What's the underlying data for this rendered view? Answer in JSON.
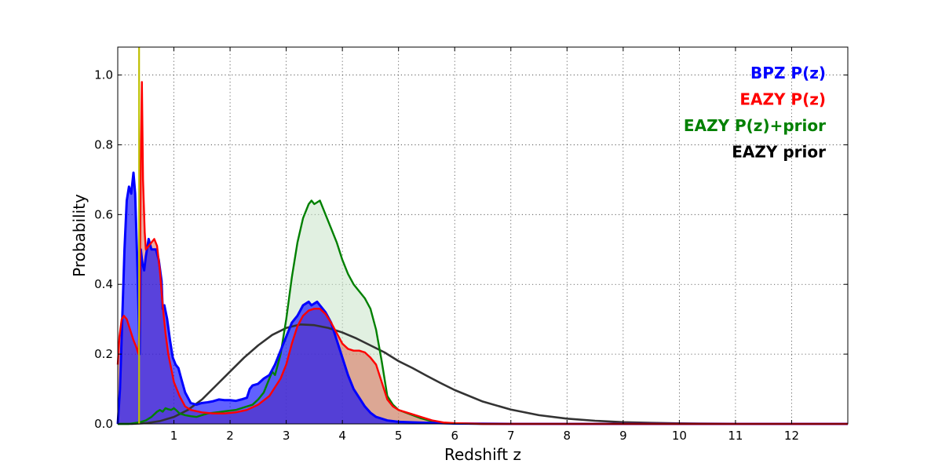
{
  "chart_data": {
    "type": "area",
    "title": "",
    "xlabel": "Redshift z",
    "ylabel": "Probability",
    "xlim": [
      0,
      13
    ],
    "ylim": [
      0,
      1.08
    ],
    "x_ticks": [
      "1",
      "2",
      "3",
      "4",
      "5",
      "6",
      "7",
      "8",
      "9",
      "10",
      "11",
      "12"
    ],
    "y_ticks": [
      "0.0",
      "0.2",
      "0.4",
      "0.6",
      "0.8",
      "1.0"
    ],
    "grid": true,
    "legend_position": "top-right",
    "vertical_line": {
      "x": 0.38,
      "color": "#bfbf00"
    },
    "series": [
      {
        "name": "BPZ P(z)",
        "color": "#0000ff",
        "fill": "#0000ff",
        "points": [
          [
            0,
            0
          ],
          [
            0.04,
            0.1
          ],
          [
            0.08,
            0.3
          ],
          [
            0.12,
            0.5
          ],
          [
            0.16,
            0.64
          ],
          [
            0.2,
            0.68
          ],
          [
            0.24,
            0.66
          ],
          [
            0.28,
            0.72
          ],
          [
            0.31,
            0.66
          ],
          [
            0.35,
            0.45
          ],
          [
            0.39,
            0.2
          ],
          [
            0.41,
            0.5
          ],
          [
            0.44,
            0.46
          ],
          [
            0.47,
            0.44
          ],
          [
            0.5,
            0.48
          ],
          [
            0.55,
            0.53
          ],
          [
            0.6,
            0.5
          ],
          [
            0.68,
            0.5
          ],
          [
            0.73,
            0.47
          ],
          [
            0.78,
            0.41
          ],
          [
            0.8,
            0.33
          ],
          [
            0.83,
            0.34
          ],
          [
            0.88,
            0.3
          ],
          [
            0.93,
            0.24
          ],
          [
            0.98,
            0.19
          ],
          [
            1.03,
            0.17
          ],
          [
            1.08,
            0.16
          ],
          [
            1.13,
            0.13
          ],
          [
            1.2,
            0.09
          ],
          [
            1.3,
            0.06
          ],
          [
            1.4,
            0.055
          ],
          [
            1.5,
            0.06
          ],
          [
            1.6,
            0.062
          ],
          [
            1.7,
            0.065
          ],
          [
            1.8,
            0.07
          ],
          [
            1.9,
            0.068
          ],
          [
            2.0,
            0.068
          ],
          [
            2.1,
            0.066
          ],
          [
            2.2,
            0.07
          ],
          [
            2.3,
            0.075
          ],
          [
            2.35,
            0.1
          ],
          [
            2.4,
            0.11
          ],
          [
            2.5,
            0.115
          ],
          [
            2.6,
            0.13
          ],
          [
            2.7,
            0.14
          ],
          [
            2.8,
            0.17
          ],
          [
            2.9,
            0.21
          ],
          [
            3.0,
            0.25
          ],
          [
            3.1,
            0.29
          ],
          [
            3.2,
            0.31
          ],
          [
            3.3,
            0.34
          ],
          [
            3.35,
            0.345
          ],
          [
            3.4,
            0.35
          ],
          [
            3.45,
            0.34
          ],
          [
            3.5,
            0.345
          ],
          [
            3.55,
            0.35
          ],
          [
            3.6,
            0.34
          ],
          [
            3.7,
            0.32
          ],
          [
            3.8,
            0.29
          ],
          [
            3.9,
            0.24
          ],
          [
            4.0,
            0.19
          ],
          [
            4.1,
            0.14
          ],
          [
            4.2,
            0.1
          ],
          [
            4.3,
            0.075
          ],
          [
            4.4,
            0.05
          ],
          [
            4.5,
            0.032
          ],
          [
            4.6,
            0.02
          ],
          [
            4.8,
            0.01
          ],
          [
            5.0,
            0.006
          ],
          [
            5.5,
            0.003
          ],
          [
            6.0,
            0.001
          ],
          [
            7.0,
            0
          ],
          [
            13.0,
            0
          ]
        ]
      },
      {
        "name": "EAZY P(z)",
        "color": "#ff0000",
        "fill": "#d96c55",
        "points": [
          [
            0,
            0.17
          ],
          [
            0.03,
            0.25
          ],
          [
            0.07,
            0.3
          ],
          [
            0.11,
            0.31
          ],
          [
            0.16,
            0.3
          ],
          [
            0.22,
            0.27
          ],
          [
            0.28,
            0.24
          ],
          [
            0.33,
            0.22
          ],
          [
            0.37,
            0.2
          ],
          [
            0.39,
            0.3
          ],
          [
            0.41,
            0.75
          ],
          [
            0.43,
            0.98
          ],
          [
            0.45,
            0.7
          ],
          [
            0.48,
            0.55
          ],
          [
            0.5,
            0.5
          ],
          [
            0.55,
            0.51
          ],
          [
            0.6,
            0.52
          ],
          [
            0.65,
            0.53
          ],
          [
            0.7,
            0.51
          ],
          [
            0.75,
            0.44
          ],
          [
            0.8,
            0.34
          ],
          [
            0.85,
            0.26
          ],
          [
            0.9,
            0.2
          ],
          [
            0.95,
            0.16
          ],
          [
            1.0,
            0.12
          ],
          [
            1.05,
            0.1
          ],
          [
            1.1,
            0.08
          ],
          [
            1.15,
            0.065
          ],
          [
            1.2,
            0.05
          ],
          [
            1.3,
            0.04
          ],
          [
            1.5,
            0.033
          ],
          [
            1.7,
            0.03
          ],
          [
            1.9,
            0.03
          ],
          [
            2.1,
            0.033
          ],
          [
            2.3,
            0.04
          ],
          [
            2.5,
            0.055
          ],
          [
            2.7,
            0.08
          ],
          [
            2.9,
            0.13
          ],
          [
            3.0,
            0.17
          ],
          [
            3.1,
            0.23
          ],
          [
            3.2,
            0.28
          ],
          [
            3.3,
            0.31
          ],
          [
            3.4,
            0.325
          ],
          [
            3.5,
            0.33
          ],
          [
            3.6,
            0.33
          ],
          [
            3.7,
            0.315
          ],
          [
            3.8,
            0.29
          ],
          [
            3.9,
            0.26
          ],
          [
            4.0,
            0.23
          ],
          [
            4.1,
            0.215
          ],
          [
            4.2,
            0.21
          ],
          [
            4.3,
            0.21
          ],
          [
            4.4,
            0.205
          ],
          [
            4.5,
            0.19
          ],
          [
            4.6,
            0.17
          ],
          [
            4.7,
            0.12
          ],
          [
            4.8,
            0.07
          ],
          [
            4.9,
            0.05
          ],
          [
            5.0,
            0.04
          ],
          [
            5.2,
            0.03
          ],
          [
            5.4,
            0.02
          ],
          [
            5.6,
            0.01
          ],
          [
            5.8,
            0.004
          ],
          [
            6.0,
            0.002
          ],
          [
            6.5,
            0
          ],
          [
            13.0,
            0
          ]
        ]
      },
      {
        "name": "EAZY P(z)+prior",
        "color": "#008000",
        "fill": "#c8e3c8",
        "points": [
          [
            0,
            0
          ],
          [
            0.2,
            0
          ],
          [
            0.4,
            0.005
          ],
          [
            0.5,
            0.01
          ],
          [
            0.6,
            0.02
          ],
          [
            0.7,
            0.035
          ],
          [
            0.75,
            0.04
          ],
          [
            0.8,
            0.035
          ],
          [
            0.85,
            0.045
          ],
          [
            0.9,
            0.042
          ],
          [
            0.95,
            0.04
          ],
          [
            1.0,
            0.045
          ],
          [
            1.05,
            0.038
          ],
          [
            1.1,
            0.03
          ],
          [
            1.2,
            0.025
          ],
          [
            1.3,
            0.022
          ],
          [
            1.4,
            0.02
          ],
          [
            1.5,
            0.025
          ],
          [
            1.6,
            0.03
          ],
          [
            1.7,
            0.032
          ],
          [
            1.8,
            0.034
          ],
          [
            1.9,
            0.036
          ],
          [
            2.0,
            0.038
          ],
          [
            2.1,
            0.04
          ],
          [
            2.2,
            0.045
          ],
          [
            2.3,
            0.05
          ],
          [
            2.4,
            0.055
          ],
          [
            2.5,
            0.07
          ],
          [
            2.6,
            0.09
          ],
          [
            2.7,
            0.13
          ],
          [
            2.75,
            0.15
          ],
          [
            2.8,
            0.14
          ],
          [
            2.9,
            0.2
          ],
          [
            3.0,
            0.3
          ],
          [
            3.1,
            0.42
          ],
          [
            3.2,
            0.52
          ],
          [
            3.3,
            0.59
          ],
          [
            3.4,
            0.63
          ],
          [
            3.45,
            0.64
          ],
          [
            3.5,
            0.63
          ],
          [
            3.55,
            0.635
          ],
          [
            3.6,
            0.64
          ],
          [
            3.65,
            0.62
          ],
          [
            3.7,
            0.6
          ],
          [
            3.8,
            0.56
          ],
          [
            3.9,
            0.52
          ],
          [
            4.0,
            0.47
          ],
          [
            4.1,
            0.43
          ],
          [
            4.2,
            0.4
          ],
          [
            4.3,
            0.38
          ],
          [
            4.4,
            0.36
          ],
          [
            4.5,
            0.33
          ],
          [
            4.6,
            0.27
          ],
          [
            4.7,
            0.18
          ],
          [
            4.8,
            0.08
          ],
          [
            4.9,
            0.055
          ],
          [
            5.0,
            0.04
          ],
          [
            5.2,
            0.028
          ],
          [
            5.4,
            0.016
          ],
          [
            5.6,
            0.007
          ],
          [
            5.8,
            0.003
          ],
          [
            6.0,
            0.001
          ],
          [
            6.5,
            0
          ],
          [
            13.0,
            0
          ]
        ]
      },
      {
        "name": "EAZY prior",
        "color": "#333333",
        "fill": "none",
        "points": [
          [
            0,
            0
          ],
          [
            0.25,
            0
          ],
          [
            0.5,
            0.002
          ],
          [
            0.75,
            0.008
          ],
          [
            1.0,
            0.02
          ],
          [
            1.25,
            0.04
          ],
          [
            1.5,
            0.07
          ],
          [
            1.75,
            0.11
          ],
          [
            2.0,
            0.15
          ],
          [
            2.25,
            0.19
          ],
          [
            2.5,
            0.225
          ],
          [
            2.75,
            0.255
          ],
          [
            3.0,
            0.275
          ],
          [
            3.25,
            0.285
          ],
          [
            3.5,
            0.283
          ],
          [
            3.75,
            0.275
          ],
          [
            4.0,
            0.262
          ],
          [
            4.25,
            0.245
          ],
          [
            4.5,
            0.225
          ],
          [
            4.75,
            0.205
          ],
          [
            5.0,
            0.18
          ],
          [
            5.25,
            0.16
          ],
          [
            5.5,
            0.138
          ],
          [
            5.75,
            0.117
          ],
          [
            6.0,
            0.097
          ],
          [
            6.5,
            0.064
          ],
          [
            7.0,
            0.041
          ],
          [
            7.5,
            0.025
          ],
          [
            8.0,
            0.015
          ],
          [
            8.5,
            0.009
          ],
          [
            9.0,
            0.005
          ],
          [
            9.5,
            0.003
          ],
          [
            10.0,
            0.0015
          ],
          [
            11.0,
            0.0004
          ],
          [
            12.0,
            0.0001
          ],
          [
            13.0,
            0
          ]
        ]
      }
    ]
  }
}
